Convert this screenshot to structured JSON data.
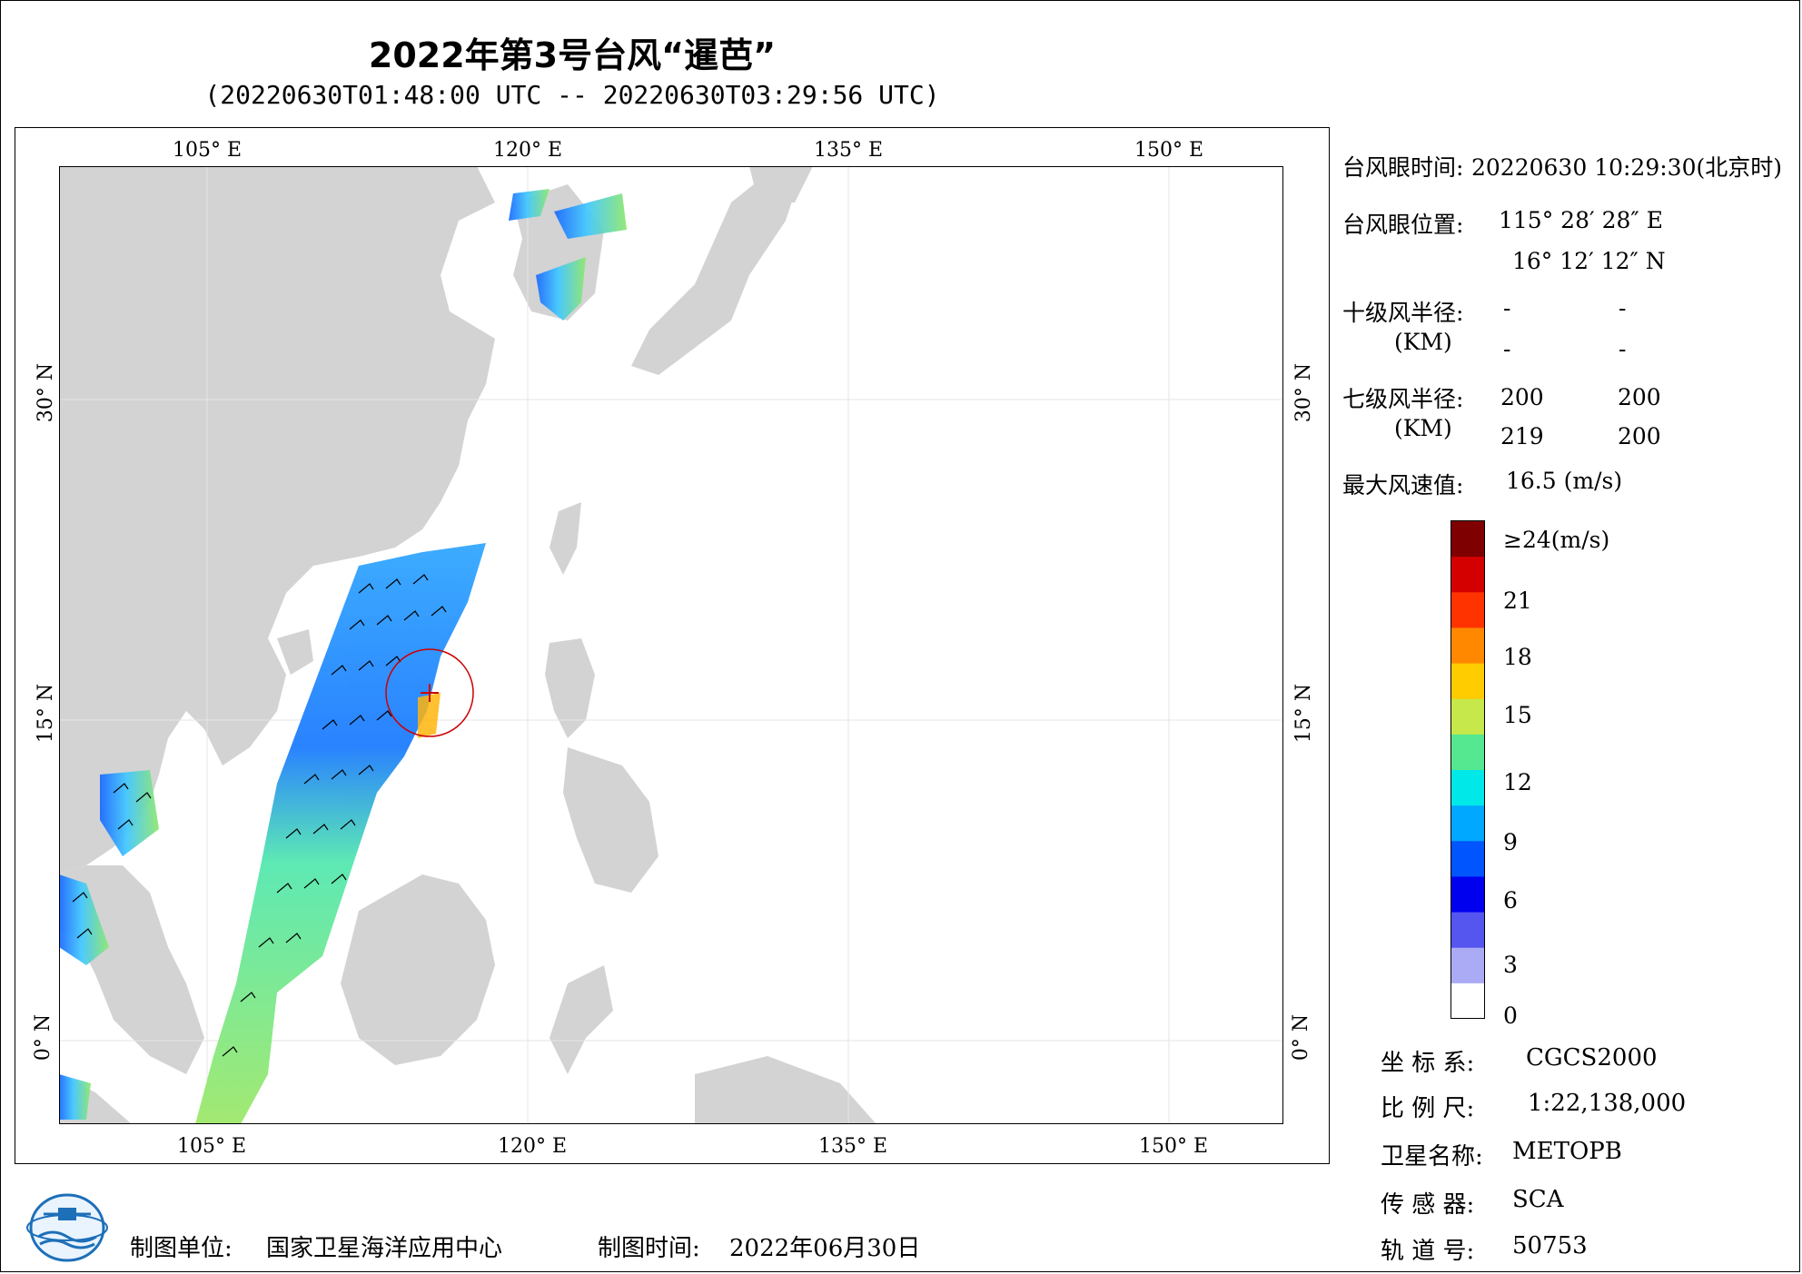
{
  "title": "2022年第3号台风“暹芭”",
  "subtitle": "(20220630T01:48:00 UTC -- 20220630T03:29:56 UTC)",
  "map": {
    "lon_ticks_top": [
      "105° E",
      "120° E",
      "135° E",
      "150° E"
    ],
    "lon_ticks_bottom": [
      "105° E",
      "120° E",
      "135° E",
      "150° E"
    ],
    "lat_ticks": [
      "30° N",
      "15° N",
      "0° N"
    ],
    "typhoon_center": {
      "lon": 115.47,
      "lat": 16.2
    },
    "colors": {
      "land": "#d3d3d3",
      "ocean": "#ffffff",
      "circle": "#cc0000"
    }
  },
  "info": {
    "eye_time_label": "台风眼时间:",
    "eye_time_value": "20220630 10:29:30(北京时)",
    "eye_pos_label": "台风眼位置:",
    "eye_lon": "115° 28′ 28″ E",
    "eye_lat": "16° 12′ 12″ N",
    "r10_label": "十级风半径:",
    "r10_unit": "(KM)",
    "r10_values": [
      "-",
      "-",
      "-",
      "-"
    ],
    "r7_label": "七级风半径:",
    "r7_unit": "(KM)",
    "r7_values": [
      "200",
      "200",
      "219",
      "200"
    ],
    "max_wind_label": "最大风速值:",
    "max_wind_value": "16.5  (m/s)"
  },
  "colorbar": {
    "labels": [
      "≥24(m/s)",
      "21",
      "18",
      "15",
      "12",
      "9",
      "6",
      "3",
      "0"
    ],
    "colors": [
      "#7f0000",
      "#d40000",
      "#ff3300",
      "#ff8800",
      "#ffcc00",
      "#c6e84a",
      "#55e890",
      "#00e8e8",
      "#00a8ff",
      "#0055ff",
      "#0000ee",
      "#5555f0",
      "#aaaaf5",
      "#ffffff"
    ]
  },
  "meta": {
    "crs_label": "坐 标 系:",
    "crs_value": "CGCS2000",
    "scale_label": "比 例 尺:",
    "scale_value": "1:22,138,000",
    "satellite_label": "卫星名称:",
    "satellite_value": "METOPB",
    "sensor_label": "传 感 器:",
    "sensor_value": "SCA",
    "orbit_label": "轨 道 号:",
    "orbit_value": "50753"
  },
  "footer": {
    "org_label": "制图单位:",
    "org_value": "国家卫星海洋应用中心",
    "date_label": "制图时间:",
    "date_value": "2022年06月30日"
  }
}
